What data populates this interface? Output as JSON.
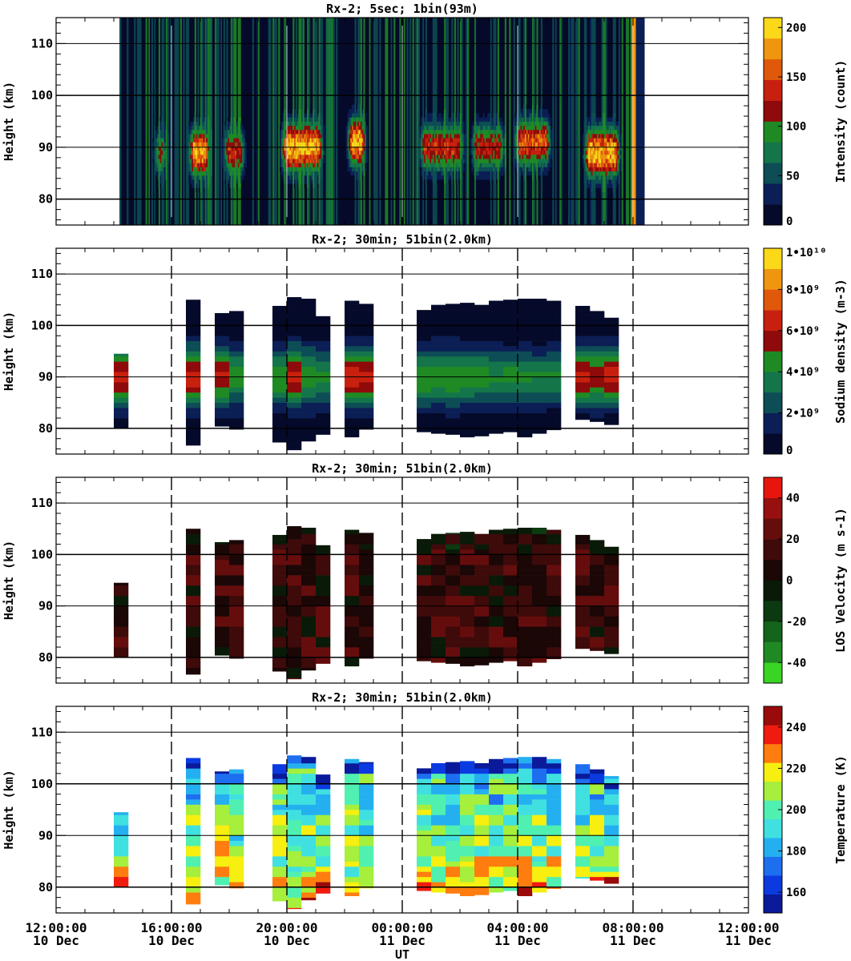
{
  "figure": {
    "x_label": "UT",
    "x_ticks": [
      {
        "time": "12:00:00",
        "date": "10 Dec"
      },
      {
        "time": "16:00:00",
        "date": "10 Dec"
      },
      {
        "time": "20:00:00",
        "date": "10 Dec"
      },
      {
        "time": "00:00:00",
        "date": "11 Dec"
      },
      {
        "time": "04:00:00",
        "date": "11 Dec"
      },
      {
        "time": "08:00:00",
        "date": "11 Dec"
      },
      {
        "time": "12:00:00",
        "date": "11 Dec"
      }
    ],
    "x_range_hours": [
      0,
      24
    ],
    "y_label": "Height (km)",
    "y_ticks": [
      "80",
      "90",
      "100",
      "110"
    ],
    "y_range_km": [
      75,
      115
    ]
  },
  "chart_data": [
    {
      "type": "heatmap",
      "title": "Rx-2;  5sec; 1bin(93m)",
      "ylabel": "Height (km)",
      "colorbar": {
        "label": "Intensity (count)",
        "ticks": [
          "0",
          "50",
          "100",
          "150",
          "200"
        ],
        "range": [
          0,
          210
        ]
      },
      "colors": [
        "#050a2a",
        "#0b1e55",
        "#0d4d55",
        "#14754a",
        "#1f8a24",
        "#8f0a0a",
        "#c8200e",
        "#e0580a",
        "#ef960e",
        "#fbd818"
      ],
      "data_hours": [
        2.2,
        20.4
      ],
      "sodium_layers": [
        {
          "start": 3.3,
          "end": 3.9,
          "center_km": 89,
          "peak_count": 110
        },
        {
          "start": 4.5,
          "end": 5.4,
          "center_km": 89,
          "peak_count": 190
        },
        {
          "start": 5.7,
          "end": 6.6,
          "center_km": 89,
          "peak_count": 140
        },
        {
          "start": 7.7,
          "end": 9.3,
          "center_km": 90,
          "peak_count": 200
        },
        {
          "start": 10.0,
          "end": 10.8,
          "center_km": 91,
          "peak_count": 200
        },
        {
          "start": 12.5,
          "end": 14.2,
          "center_km": 90,
          "peak_count": 140
        },
        {
          "start": 14.3,
          "end": 15.6,
          "center_km": 90,
          "peak_count": 130
        },
        {
          "start": 15.8,
          "end": 17.2,
          "center_km": 91,
          "peak_count": 160
        },
        {
          "start": 18.2,
          "end": 19.6,
          "center_km": 89,
          "peak_count": 200
        }
      ]
    },
    {
      "type": "heatmap",
      "title": "Rx-2; 30min; 51bin(2.0km)",
      "ylabel": "Height (km)",
      "colorbar": {
        "label": "Sodium density (m-3)",
        "ticks": [
          "0",
          "2•10⁹",
          "4•10⁹",
          "6•10⁹",
          "8•10⁹",
          "1•10¹⁰"
        ],
        "range": [
          0,
          10
        ]
      },
      "colors": [
        "#050a2a",
        "#0b1e55",
        "#0d4d55",
        "#14754a",
        "#1f8a24",
        "#8f0a0a",
        "#c8200e",
        "#e0580a",
        "#ef960e",
        "#fbd818"
      ],
      "columns": [
        {
          "t": 2.25,
          "bottom": 80,
          "top": 94.5,
          "peak": 6.3
        },
        {
          "t": 4.75,
          "bottom": 76.7,
          "top": 105,
          "peak": 6.5
        },
        {
          "t": 5.75,
          "bottom": 80.4,
          "top": 102.4,
          "peak": 6.0
        },
        {
          "t": 6.25,
          "bottom": 79.8,
          "top": 102.8,
          "peak": 4.5
        },
        {
          "t": 7.75,
          "bottom": 77.3,
          "top": 103.8,
          "peak": 4.8
        },
        {
          "t": 8.25,
          "bottom": 75.8,
          "top": 105.5,
          "peak": 6.5
        },
        {
          "t": 8.75,
          "bottom": 77.5,
          "top": 105.2,
          "peak": 4.8
        },
        {
          "t": 9.25,
          "bottom": 78.8,
          "top": 101.8,
          "peak": 4.2
        },
        {
          "t": 10.25,
          "bottom": 78.3,
          "top": 104.8,
          "peak": 6.5
        },
        {
          "t": 10.75,
          "bottom": 79.8,
          "top": 104.2,
          "peak": 6.0
        },
        {
          "t": 12.75,
          "bottom": 79.3,
          "top": 103.0,
          "peak": 4.8
        },
        {
          "t": 13.25,
          "bottom": 79.0,
          "top": 104.0,
          "peak": 4.8
        },
        {
          "t": 13.75,
          "bottom": 78.8,
          "top": 104.2,
          "peak": 4.8
        },
        {
          "t": 14.25,
          "bottom": 78.3,
          "top": 104.4,
          "peak": 4.5
        },
        {
          "t": 14.75,
          "bottom": 78.5,
          "top": 104.0,
          "peak": 4.5
        },
        {
          "t": 15.25,
          "bottom": 79.0,
          "top": 104.8,
          "peak": 4.2
        },
        {
          "t": 15.75,
          "bottom": 79.3,
          "top": 105.0,
          "peak": 4.2
        },
        {
          "t": 16.25,
          "bottom": 78.3,
          "top": 105.2,
          "peak": 4.0
        },
        {
          "t": 16.75,
          "bottom": 79.0,
          "top": 105.2,
          "peak": 4.0
        },
        {
          "t": 17.25,
          "bottom": 79.7,
          "top": 104.8,
          "peak": 4.0
        },
        {
          "t": 18.25,
          "bottom": 81.7,
          "top": 103.8,
          "peak": 6.3
        },
        {
          "t": 18.75,
          "bottom": 81.3,
          "top": 102.8,
          "peak": 5.8
        },
        {
          "t": 19.25,
          "bottom": 80.7,
          "top": 101.5,
          "peak": 6.3
        }
      ]
    },
    {
      "type": "heatmap",
      "title": "Rx-2; 30min; 51bin(2.0km)",
      "ylabel": "Height (km)",
      "colorbar": {
        "label": "LOS Velocity (m s-1)",
        "ticks": [
          "-40",
          "-20",
          "0",
          "20",
          "40"
        ],
        "range": [
          -50,
          50
        ]
      },
      "colors": [
        "#39d424",
        "#1f8a24",
        "#14641c",
        "#0b3a10",
        "#0a1a08",
        "#1a0706",
        "#3e0a0a",
        "#650d0d",
        "#970f0f",
        "#e8150f"
      ],
      "value_range_observed": [
        -25,
        25
      ]
    },
    {
      "type": "heatmap",
      "title": "Rx-2; 30min; 51bin(2.0km)",
      "ylabel": "Height (km)",
      "colorbar": {
        "label": "Temperature (K)",
        "ticks": [
          "160",
          "180",
          "200",
          "220",
          "240"
        ],
        "range": [
          150,
          250
        ]
      },
      "colors": [
        "#0a1a9a",
        "#0b3ae0",
        "#1e6ef0",
        "#24b0f0",
        "#40e0e0",
        "#50f0b0",
        "#a6ef3c",
        "#f6ef10",
        "#ff7d0f",
        "#f01a0f",
        "#9a0a0a"
      ],
      "value_range_observed": [
        160,
        245
      ]
    }
  ]
}
